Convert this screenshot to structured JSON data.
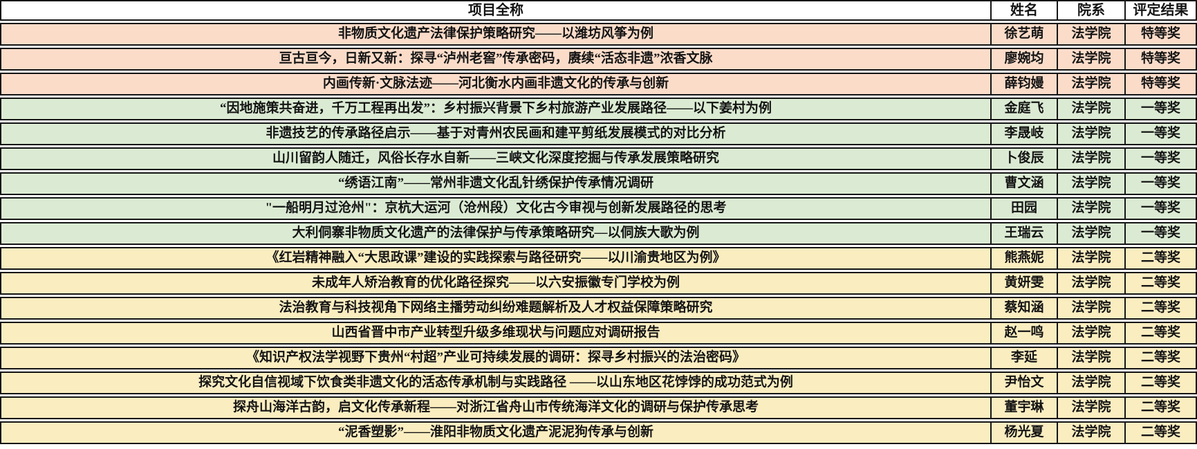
{
  "table": {
    "headers": {
      "project": "项目全称",
      "name": "姓名",
      "dept": "院系",
      "result": "评定结果"
    },
    "rows": [
      {
        "project": "非物质文化遗产法律保护策略研究——以潍坊风筝为例",
        "name": "徐艺萌",
        "dept": "法学院",
        "result": "特等奖",
        "tier": "special"
      },
      {
        "project": "亘古亘今，日新又新：探寻“泸州老窖”传承密码，赓续“活态非遗”浓香文脉",
        "name": "廖婉均",
        "dept": "法学院",
        "result": "特等奖",
        "tier": "special"
      },
      {
        "project": "内画传新·文脉法迹——河北衡水内画非遗文化的传承与创新",
        "name": "薛钧嫚",
        "dept": "法学院",
        "result": "特等奖",
        "tier": "special"
      },
      {
        "project": "“因地施策共奋进，千万工程再出发”：乡村振兴背景下乡村旅游产业发展路径——以下姜村为例",
        "name": "金庭飞",
        "dept": "法学院",
        "result": "一等奖",
        "tier": "first"
      },
      {
        "project": "非遗技艺的传承路径启示——基于对青州农民画和建平剪纸发展模式的对比分析",
        "name": "李晟岐",
        "dept": "法学院",
        "result": "一等奖",
        "tier": "first"
      },
      {
        "project": "山川留韵人随迁，风俗长存水自新——三峡文化深度挖掘与传承发展策略研究",
        "name": "卜俊辰",
        "dept": "法学院",
        "result": "一等奖",
        "tier": "first"
      },
      {
        "project": "“绣语江南”——常州非遗文化乱针绣保护传承情况调研",
        "name": "曹文涵",
        "dept": "法学院",
        "result": "一等奖",
        "tier": "first"
      },
      {
        "project": "\"一船明月过沧州\"：京杭大运河（沧州段）文化古今审视与创新发展路径的思考",
        "name": "田园",
        "dept": "法学院",
        "result": "一等奖",
        "tier": "first"
      },
      {
        "project": "大利侗寨非物质文化遗产的法律保护与传承策略研究—以侗族大歌为例",
        "name": "王瑞云",
        "dept": "法学院",
        "result": "一等奖",
        "tier": "first"
      },
      {
        "project": "《红岩精神融入“大思政课”建设的实践探索与路径研究——以川渝贵地区为例》",
        "name": "熊燕妮",
        "dept": "法学院",
        "result": "二等奖",
        "tier": "second"
      },
      {
        "project": "未成年人矫治教育的优化路径探究——以六安振徽专门学校为例",
        "name": "黄妍雯",
        "dept": "法学院",
        "result": "二等奖",
        "tier": "second"
      },
      {
        "project": "法治教育与科技视角下网络主播劳动纠纷难题解析及人才权益保障策略研究",
        "name": "蔡知涵",
        "dept": "法学院",
        "result": "二等奖",
        "tier": "second"
      },
      {
        "project": "山西省晋中市产业转型升级多维现状与问题应对调研报告",
        "name": "赵一鸣",
        "dept": "法学院",
        "result": "二等奖",
        "tier": "second"
      },
      {
        "project": "《知识产权法学视野下贵州“村超”产业可持续发展的调研：探寻乡村振兴的法治密码》",
        "name": "李延",
        "dept": "法学院",
        "result": "二等奖",
        "tier": "second"
      },
      {
        "project": "探究文化自信视域下饮食类非遗文化的活态传承机制与实践路径 ——以山东地区花饽饽的成功范式为例",
        "name": "尹怡文",
        "dept": "法学院",
        "result": "二等奖",
        "tier": "second"
      },
      {
        "project": "探舟山海洋古韵，启文化传承新程——对浙江省舟山市传统海洋文化的调研与保护传承思考",
        "name": "董宇琳",
        "dept": "法学院",
        "result": "二等奖",
        "tier": "second"
      },
      {
        "project": "“泥香塑影”——淮阳非物质文化遗产泥泥狗传承与创新",
        "name": "杨光夏",
        "dept": "法学院",
        "result": "二等奖",
        "tier": "second"
      }
    ]
  },
  "colors": {
    "special_prize_bg": "#FBDCC9",
    "first_prize_bg": "#DBEBD3",
    "second_prize_bg": "#FAEDC0",
    "header_bg": "#FFFFFF",
    "border": "#161616"
  }
}
